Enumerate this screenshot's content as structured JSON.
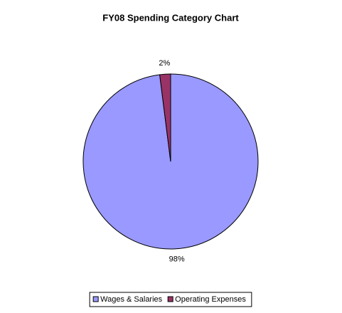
{
  "chart_data": {
    "type": "pie",
    "title": "FY08 Spending Category Chart",
    "categories": [
      "Wages & Salaries",
      "Operating Expenses"
    ],
    "values": [
      98,
      2
    ],
    "value_labels": [
      "98%",
      "2%"
    ],
    "colors": [
      "#9999ff",
      "#993366"
    ],
    "legend": "bottom"
  }
}
